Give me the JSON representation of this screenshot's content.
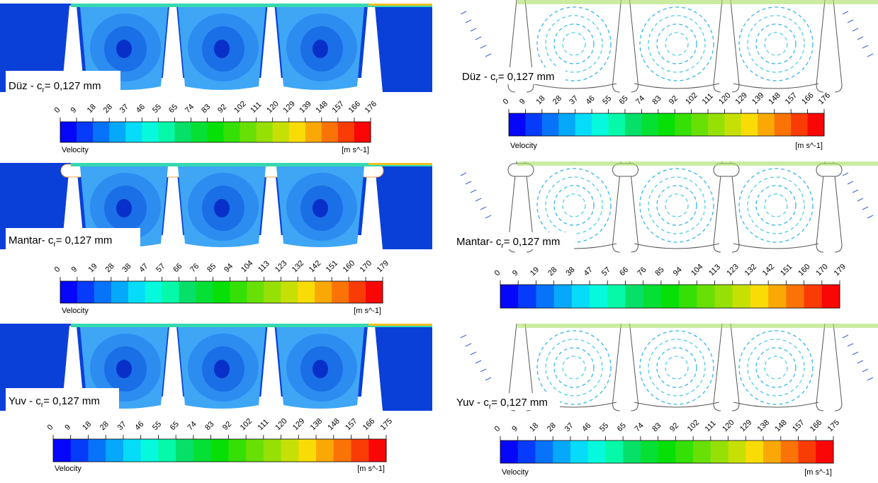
{
  "panels": [
    {
      "label": {
        "prefix": "Düz - c",
        "sub": "r",
        "suffix": "= 0,127 mm"
      },
      "colorbar": {
        "ticks": [
          0,
          9,
          18,
          28,
          37,
          46,
          55,
          65,
          74,
          83,
          92,
          102,
          111,
          120,
          129,
          139,
          148,
          157,
          166,
          176
        ],
        "quantity": "Velocity",
        "unit": "[m s^-1]"
      }
    },
    {
      "label": {
        "prefix": "Düz - c",
        "sub": "r",
        "suffix": "= 0,127 mm"
      },
      "colorbar": {
        "ticks": [
          0,
          9,
          18,
          28,
          37,
          46,
          55,
          65,
          74,
          83,
          92,
          102,
          111,
          120,
          129,
          139,
          148,
          157,
          166,
          176
        ],
        "quantity": "Velocity",
        "unit": "[m s^-1]"
      }
    },
    {
      "label": {
        "prefix": "Mantar- c",
        "sub": "r",
        "suffix": "= 0,127 mm"
      },
      "colorbar": {
        "ticks": [
          0,
          9,
          19,
          28,
          38,
          47,
          57,
          66,
          76,
          85,
          94,
          104,
          113,
          123,
          132,
          142,
          151,
          160,
          170,
          179
        ],
        "quantity": "Velocity",
        "unit": "[m s^-1]"
      }
    },
    {
      "label": {
        "prefix": "Mantar- c",
        "sub": "r",
        "suffix": "= 0,127 mm"
      },
      "colorbar": {
        "ticks": [
          0,
          9,
          19,
          28,
          38,
          47,
          57,
          66,
          76,
          85,
          94,
          104,
          113,
          123,
          132,
          142,
          151,
          160,
          170,
          179
        ]
      }
    },
    {
      "label": {
        "prefix": "Yuv - c",
        "sub": "r",
        "suffix": "= 0,127 mm"
      },
      "colorbar": {
        "ticks": [
          0,
          9,
          18,
          28,
          37,
          46,
          55,
          65,
          74,
          83,
          92,
          102,
          111,
          120,
          129,
          138,
          148,
          157,
          166,
          175
        ],
        "quantity": "Velocity",
        "unit": "[m s^-1]"
      }
    },
    {
      "label": {
        "prefix": "Yuv - c",
        "sub": "r",
        "suffix": "= 0,127 mm"
      },
      "colorbar": {
        "ticks": [
          0,
          9,
          18,
          28,
          37,
          46,
          55,
          65,
          74,
          83,
          92,
          102,
          111,
          120,
          129,
          138,
          148,
          157,
          166,
          175
        ],
        "quantity": "Velocity",
        "unit": "[m s^-1]"
      }
    }
  ]
}
